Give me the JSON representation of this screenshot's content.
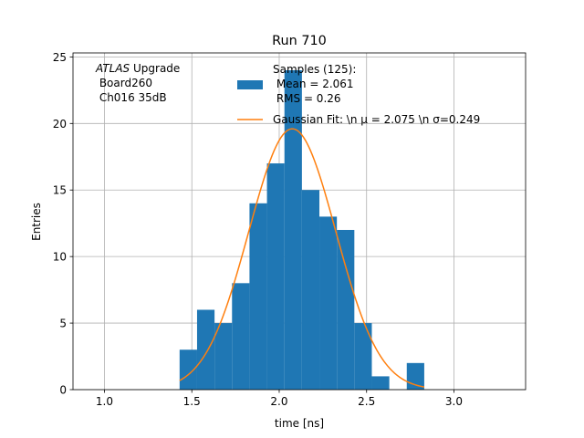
{
  "chart_data": {
    "type": "bar",
    "title": "Run 710",
    "xlabel": "time [ns]",
    "ylabel": "Entries",
    "xlim": [
      0.82,
      3.41
    ],
    "ylim": [
      0,
      25.3
    ],
    "xticks": [
      1.0,
      1.5,
      2.0,
      2.5,
      3.0
    ],
    "xtick_labels": [
      "1.0",
      "1.5",
      "2.0",
      "2.5",
      "3.0"
    ],
    "yticks": [
      0,
      5,
      10,
      15,
      20,
      25
    ],
    "ytick_labels": [
      "0",
      "5",
      "10",
      "15",
      "20",
      "25"
    ],
    "grid": true,
    "annotation": {
      "italic": "ATLAS",
      "line1_rest": " Upgrade",
      "line2": " Board260",
      "line3": " Ch016 35dB"
    },
    "legend": {
      "placement": "top-right",
      "entries": [
        {
          "lines": [
            "Samples (125):",
            " Mean = 2.061",
            " RMS = 0.26"
          ],
          "kind": "patch"
        },
        {
          "lines": [
            "Gaussian Fit: \\n μ = 2.075 \\n σ=0.249"
          ],
          "kind": "line"
        }
      ]
    },
    "series": [
      {
        "name": "Samples (125):",
        "kind": "histogram",
        "color": "#1f77b4",
        "bin_edges": [
          1.43,
          1.53,
          1.63,
          1.73,
          1.83,
          1.93,
          2.03,
          2.13,
          2.23,
          2.33,
          2.43,
          2.53,
          2.63,
          2.73,
          2.83
        ],
        "counts": [
          3,
          6,
          5,
          8,
          14,
          17,
          24,
          15,
          13,
          12,
          5,
          1,
          0,
          2
        ]
      },
      {
        "name": "Gaussian Fit",
        "kind": "curve",
        "color": "#ff7f0e",
        "mu": 2.075,
        "sigma": 0.249,
        "amplitude": 19.6,
        "x_range": [
          1.43,
          2.83
        ]
      }
    ]
  }
}
